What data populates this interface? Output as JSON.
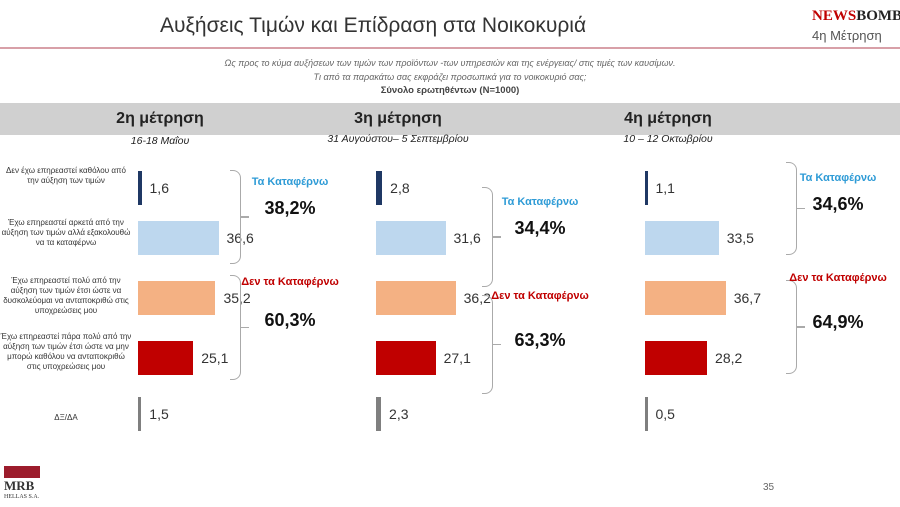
{
  "header": {
    "title": "Αυξήσεις Τιμών και Επίδραση στα Νοικοκυριά",
    "logo_news": "NEWS",
    "logo_bomb": "BOMB",
    "wave": "4η Μέτρηση"
  },
  "question": {
    "line1": "Ως προς το κύμα αυξήσεων των τιμών των προϊόντων -των υπηρεσιών και της ενέργειας/ στις τιμές των καυσίμων.",
    "line2": "Τι από τα παρακάτω σας εκφράζει  προσωπικά για το νοικοκυριό σας;",
    "base": "Σύνολο ερωτηθέντων (N=1000)"
  },
  "colors": [
    "#1f3864",
    "#bdd7ee",
    "#f4b183",
    "#c00000",
    "#7f7f7f"
  ],
  "chart_data": {
    "type": "bar",
    "categories": [
      "Δεν έχω επηρεαστεί καθόλου από την αύξηση των τιμών",
      "Έχω επηρεαστεί αρκετά από την αύξηση των τιμών αλλά εξακολουθώ να τα καταφέρνω",
      "Έχω επηρεαστεί πολύ από την αύξηση των τιμών έτσι ώστε να δυσκολεύομαι να ανταποκριθώ στις υποχρεώσεις μου",
      "Έχω επηρεαστεί πάρα πολύ από την αύξηση των τιμών έτσι ώστε να μην μπορώ καθόλου να ανταποκριθώ στις υποχρεώσεις μου",
      "ΔΞ/ΔΑ"
    ],
    "series": [
      {
        "name": "2η μέτρηση",
        "dates": "16-18 Μαΐου",
        "values": [
          "1,6",
          "36,6",
          "35,2",
          "25,1",
          "1,5"
        ],
        "nums": [
          1.6,
          36.6,
          35.2,
          25.1,
          1.5
        ],
        "groups": [
          {
            "label": "Τα Καταφέρνω",
            "pct": "38,2%"
          },
          {
            "label": "Δεν τα Καταφέρνω",
            "pct": "60,3%"
          }
        ]
      },
      {
        "name": "3η μέτρηση",
        "dates": "31 Αυγούστου– 5 Σεπτεμβρίου",
        "values": [
          "2,8",
          "31,6",
          "36,2",
          "27,1",
          "2,3"
        ],
        "nums": [
          2.8,
          31.6,
          36.2,
          27.1,
          2.3
        ],
        "groups": [
          {
            "label": "Τα Καταφέρνω",
            "pct": "34,4%"
          },
          {
            "label": "Δεν τα Καταφέρνω",
            "pct": "63,3%"
          }
        ]
      },
      {
        "name": "4η μέτρηση",
        "dates": "10 – 12 Οκτωβρίου",
        "values": [
          "1,1",
          "33,5",
          "36,7",
          "28,2",
          "0,5"
        ],
        "nums": [
          1.1,
          33.5,
          36.7,
          28.2,
          0.5
        ],
        "groups": [
          {
            "label": "Τα Καταφέρνω",
            "pct": "34,6%"
          },
          {
            "label": "Δεν τα Καταφέρνω",
            "pct": "64,9%"
          }
        ]
      }
    ]
  },
  "footer": {
    "logo": "MRB",
    "logo_sub": "HELLAS S.A.",
    "page": "35"
  }
}
